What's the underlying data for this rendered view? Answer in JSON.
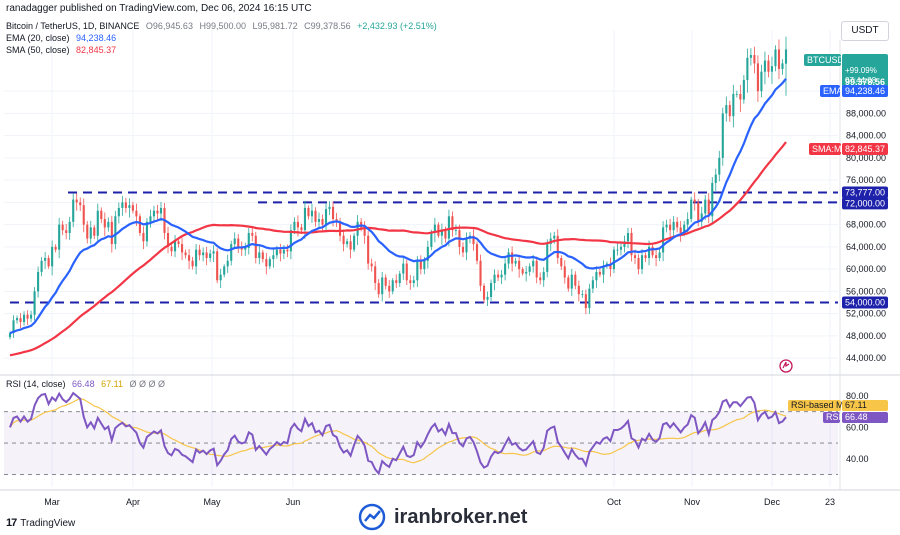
{
  "header": {
    "published_by": "ranadagger published on TradingView.com, Dec 06, 2024 16:15 UTC"
  },
  "legend": {
    "symbol": "Bitcoin / TetherUS, 1D, BINANCE",
    "open": "O96,945.63",
    "high": "H99,500.00",
    "low": "L95,981.72",
    "close": "C99,378.56",
    "change": "+2,432.93 (+2.51%)",
    "ema_label": "EMA (20, close)",
    "ema_value": "94,238.46",
    "sma_label": "SMA (50, close)",
    "sma_value": "82,845.37"
  },
  "axis_currency": "USDT",
  "price_tags": {
    "symbol": "BTCUSDT",
    "price": "99,378.56",
    "pct": "+99.09%",
    "countdown": "07:44:08",
    "ema_name": "EMA",
    "ema_price": "94,238.46",
    "sma_name": "SMA:MA",
    "sma_price": "82,845.37",
    "level_upper": "73,777.00",
    "level_72": "72,000.00",
    "level_54": "54,000.00",
    "rsi_ma_name": "RSI-based MA",
    "rsi_ma_value": "67.11",
    "rsi_name": "RSI",
    "rsi_value": "66.48"
  },
  "rsi_legend": {
    "label": "RSI (14, close)",
    "rsi": "66.48",
    "ma": "67.11",
    "extras": "Ø Ø Ø Ø"
  },
  "footer": {
    "brand": "TradingView"
  },
  "watermark": {
    "text": "iranbroker.net"
  },
  "colors": {
    "up": "#26a69a",
    "down": "#ef5350",
    "ema": "#2962ff",
    "sma": "#f23645",
    "rsi": "#7e57c2",
    "rsi_ma": "#f7c548",
    "level": "#1e22aa"
  },
  "chart_data": {
    "type": "candlestick",
    "price_axis": {
      "ticks": [
        44000,
        48000,
        52000,
        56000,
        60000,
        64000,
        68000,
        72000,
        76000,
        80000,
        84000,
        88000,
        92000
      ],
      "labels": [
        "44,000.00",
        "48,000.00",
        "52,000.00",
        "56,000.00",
        "60,000.00",
        "64,000.00",
        "68,000.00",
        "72,000.00",
        "76,000.00",
        "80,000.00",
        "84,000.00",
        "88,000.00",
        "92,000.00"
      ],
      "range": [
        41500,
        103000
      ]
    },
    "rsi_axis": {
      "ticks": [
        40,
        60,
        80
      ],
      "labels": [
        "40.00",
        "60.00",
        "80.00"
      ],
      "range": [
        22,
        87
      ],
      "band": [
        30,
        70
      ]
    },
    "time_axis": {
      "labels": [
        "Mar",
        "Apr",
        "May",
        "Jun",
        "Oct",
        "Nov",
        "Dec",
        "23"
      ]
    },
    "horizontal_levels": [
      73777,
      72000,
      54000
    ],
    "series_names": [
      "EMA",
      "SMA:MA",
      "RSI",
      "RSI-based MA"
    ],
    "close": [
      48500,
      50800,
      51200,
      50500,
      51800,
      51100,
      51800,
      56000,
      59500,
      61500,
      62000,
      60500,
      64000,
      63500,
      68000,
      67000,
      66500,
      68500,
      72500,
      72000,
      71500,
      68000,
      65500,
      67500,
      66000,
      70500,
      69000,
      67500,
      68500,
      64500,
      69500,
      71000,
      72000,
      71000,
      71500,
      70500,
      69500,
      66500,
      65000,
      68500,
      69500,
      70500,
      70000,
      71000,
      66500,
      64000,
      63200,
      65000,
      64500,
      63000,
      62500,
      61500,
      60500,
      63500,
      62500,
      63000,
      62000,
      62800,
      63200,
      58000,
      59000,
      60500,
      61500,
      64500,
      65500,
      64000,
      63500,
      63800,
      66500,
      66000,
      62000,
      63000,
      61800,
      60500,
      61800,
      62500,
      63500,
      62800,
      63500,
      63200,
      67000,
      68500,
      67500,
      67000,
      71000,
      69500,
      70500,
      68500,
      69000,
      68000,
      70800,
      71200,
      69000,
      68500,
      66000,
      64500,
      65000,
      63500,
      66000,
      68500,
      67500,
      66000,
      61000,
      60500,
      57500,
      55500,
      58500,
      57000,
      56000,
      58000,
      57500,
      59200,
      61000,
      58000,
      57500,
      58000,
      61500,
      60000,
      61500,
      64000,
      66500,
      68000,
      66000,
      67000,
      65500,
      69500,
      67000,
      67000,
      64000,
      63000,
      65500,
      66000,
      64500,
      61500,
      57000,
      54500,
      55000,
      57500,
      59000,
      58500,
      59000,
      61000,
      63000,
      61000,
      61500,
      60000,
      59200,
      59500,
      60500,
      61500,
      58500,
      58000,
      59500,
      64500,
      65500,
      66000,
      62000,
      60500,
      58500,
      56500,
      59000,
      57000,
      55500,
      55500,
      53000,
      56500,
      58000,
      59500,
      59000,
      60500,
      61000,
      60000,
      63500,
      63500,
      64000,
      65000,
      66500,
      62500,
      62000,
      60000,
      62500,
      62000,
      64000,
      62500,
      62000,
      63000,
      67500,
      68000,
      67000,
      68500,
      67500,
      66500,
      68000,
      69000,
      72500,
      72000,
      68500,
      70000,
      72500,
      69500,
      75500,
      77000,
      80000,
      88000,
      89500,
      87500,
      91500,
      91500,
      90500,
      94000,
      98000,
      98500,
      97000,
      92000,
      95500,
      97500,
      95500,
      96500,
      99500,
      96000,
      97000,
      99500
    ],
    "open_last": 96945.63,
    "high_last": 99500.0,
    "low_last": 95981.72,
    "ema20_last": 94238.46,
    "sma50_last": 82845.37,
    "rsi_last": 66.48,
    "rsi_ma_last": 67.11
  }
}
